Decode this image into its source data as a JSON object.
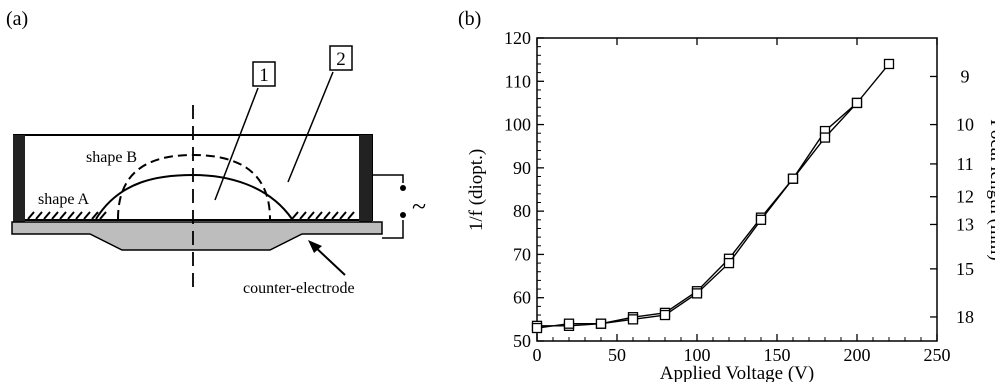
{
  "panel_a": {
    "label": "(a)",
    "box_1": "1",
    "box_2": "2",
    "shape_b": "shape B",
    "shape_a": "shape A",
    "counter_electrode": "counter-electrode",
    "ac_symbol": "~"
  },
  "panel_b": {
    "label": "(b)"
  },
  "chart_data": {
    "type": "line",
    "xlabel": "Applied Voltage (V)",
    "ylabel": "1/f (diopt.)",
    "ylabel_right": "Focal length (mm)",
    "xlim": [
      0,
      250
    ],
    "ylim": [
      50,
      120
    ],
    "x_ticks": [
      0,
      50,
      100,
      150,
      200,
      250
    ],
    "y_ticks": [
      50,
      60,
      70,
      80,
      90,
      100,
      110,
      120
    ],
    "right_ticks": [
      "9",
      "10",
      "11",
      "12",
      "13",
      "15",
      "18"
    ],
    "grid": false,
    "series": [
      {
        "marker": "square",
        "x": [
          0,
          20,
          40,
          60,
          80,
          100,
          120,
          140,
          160,
          180,
          200,
          220
        ],
        "values": [
          53.5,
          53.5,
          54,
          55.5,
          56.5,
          61.5,
          69,
          78.5,
          87.5,
          98.5,
          105,
          114
        ]
      },
      {
        "marker": "square",
        "x": [
          0,
          20,
          40,
          60,
          80,
          100,
          120,
          140,
          160,
          180,
          200
        ],
        "values": [
          53,
          54,
          54,
          55,
          56,
          61,
          68,
          78,
          87.5,
          97,
          105
        ]
      }
    ]
  }
}
